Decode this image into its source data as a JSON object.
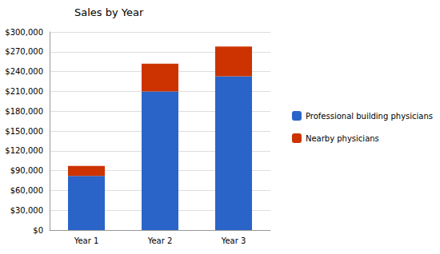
{
  "chart_data": {
    "type": "bar",
    "title": "Sales by Year",
    "categories": [
      "Year 1",
      "Year 2",
      "Year 3"
    ],
    "series": [
      {
        "name": "Professional building physicians",
        "color": "#2a64c8",
        "values": [
          82000,
          210000,
          233000
        ]
      },
      {
        "name": "Nearby physicians",
        "color": "#cc3300",
        "values": [
          15000,
          42000,
          45000
        ]
      }
    ],
    "stacked": true,
    "ylim": [
      0,
      300000
    ],
    "yticks": [
      {
        "value": 0,
        "label": "$0"
      },
      {
        "value": 30000,
        "label": "$30,000"
      },
      {
        "value": 60000,
        "label": "$60,000"
      },
      {
        "value": 90000,
        "label": "$90,000"
      },
      {
        "value": 120000,
        "label": "$120,000"
      },
      {
        "value": 150000,
        "label": "$150,000"
      },
      {
        "value": 180000,
        "label": "$180,000"
      },
      {
        "value": 210000,
        "label": "$210,000"
      },
      {
        "value": 240000,
        "label": "$240,000"
      },
      {
        "value": 270000,
        "label": "$270,000"
      },
      {
        "value": 300000,
        "label": "$300,000"
      }
    ],
    "grid": true,
    "legend": "right"
  }
}
